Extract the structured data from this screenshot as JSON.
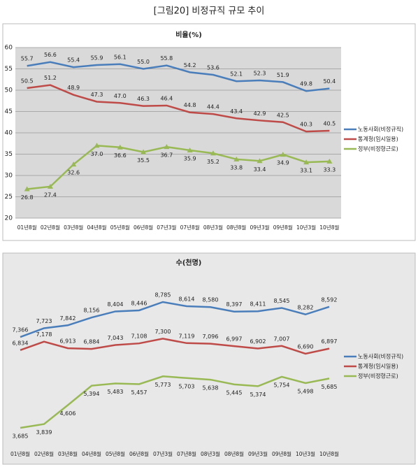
{
  "title": "[그림20] 비정규직 규모 추이",
  "chart_data": [
    {
      "type": "line",
      "title": "비율(%)",
      "grid": true,
      "categories": [
        "01년8월",
        "02년8월",
        "03년8월",
        "04년8월",
        "05년8월",
        "06년8월",
        "07년3월",
        "07년8월",
        "08년3월",
        "08년8월",
        "09년3월",
        "09년8월",
        "10년3월",
        "10년8월"
      ],
      "ylim": [
        20,
        60
      ],
      "yticks": [
        20,
        25,
        30,
        35,
        40,
        45,
        50,
        55,
        60
      ],
      "series": [
        {
          "name": "노동사회(비정규직)",
          "color": "#4a7ebb",
          "values": [
            55.7,
            56.6,
            55.4,
            55.9,
            56.1,
            55.0,
            55.8,
            54.2,
            53.6,
            52.1,
            52.3,
            51.9,
            49.8,
            50.4
          ],
          "value_labels": [
            "55.7",
            "56.6",
            "55.4",
            "55.9",
            "56.1",
            "55.0",
            "55.8",
            "54.2",
            "53.6",
            "52.1",
            "52.3",
            "51.9",
            "49.8",
            "50.4"
          ]
        },
        {
          "name": "통계청(임시일용)",
          "color": "#be4b48",
          "values": [
            50.5,
            51.2,
            48.9,
            47.3,
            47.0,
            46.3,
            46.4,
            44.8,
            44.4,
            43.4,
            42.9,
            42.5,
            40.3,
            40.5
          ],
          "value_labels": [
            "50.5",
            "51.2",
            "48.9",
            "47.3",
            "47.0",
            "46.3",
            "46.4",
            "44.8",
            "44.4",
            "43.4",
            "42.9",
            "42.5",
            "40.3",
            "40.5"
          ]
        },
        {
          "name": "정부(비정형근로)",
          "color": "#98b954",
          "values": [
            26.8,
            27.4,
            32.6,
            37.0,
            36.6,
            35.5,
            36.7,
            35.9,
            35.2,
            33.8,
            33.4,
            34.9,
            33.1,
            33.3
          ],
          "value_labels": [
            "26.8",
            "27.4",
            "32.6",
            "37.0",
            "36.6",
            "35.5",
            "36.7",
            "35.9",
            "35.2",
            "33.8",
            "33.4",
            "34.9",
            "33.1",
            "33.3"
          ]
        }
      ]
    },
    {
      "type": "line",
      "title": "수(천명)",
      "categories": [
        "01년8월",
        "02년8월",
        "03년8월",
        "04년8월",
        "05년8월",
        "06년8월",
        "07년3월",
        "07년8월",
        "08년3월",
        "08년8월",
        "09년3월",
        "09년8월",
        "10년3월",
        "10년8월"
      ],
      "series": [
        {
          "name": "노동사회(비정규직)",
          "color": "#4a7ebb",
          "values": [
            7366,
            7723,
            7842,
            8156,
            8404,
            8446,
            8785,
            8614,
            8580,
            8397,
            8411,
            8545,
            8282,
            8592
          ],
          "value_labels": [
            "7,366",
            "7,723",
            "7,842",
            "8,156",
            "8,404",
            "8,446",
            "8,785",
            "8,614",
            "8,580",
            "8,397",
            "8,411",
            "8,545",
            "8,282",
            "8,592"
          ]
        },
        {
          "name": "통계청(임시일용)",
          "color": "#be4b48",
          "values": [
            6834,
            7178,
            6913,
            6884,
            7043,
            7108,
            7300,
            7119,
            7096,
            6997,
            6902,
            7007,
            6690,
            6897
          ],
          "value_labels": [
            "6,834",
            "7,178",
            "6,913",
            "6,884",
            "7,043",
            "7,108",
            "7,300",
            "7,119",
            "7,096",
            "6,997",
            "6,902",
            "7,007",
            "6,690",
            "6,897"
          ]
        },
        {
          "name": "정부(비정형근로)",
          "color": "#98b954",
          "values": [
            3685,
            3839,
            4606,
            5394,
            5483,
            5457,
            5773,
            5703,
            5638,
            5445,
            5374,
            5754,
            5498,
            5685
          ],
          "value_labels": [
            "3,685",
            "3,839",
            "4,606",
            "5,394",
            "5,483",
            "5,457",
            "5,773",
            "5,703",
            "5,638",
            "5,445",
            "5,374",
            "5,754",
            "5,498",
            "5,685"
          ]
        }
      ]
    }
  ]
}
